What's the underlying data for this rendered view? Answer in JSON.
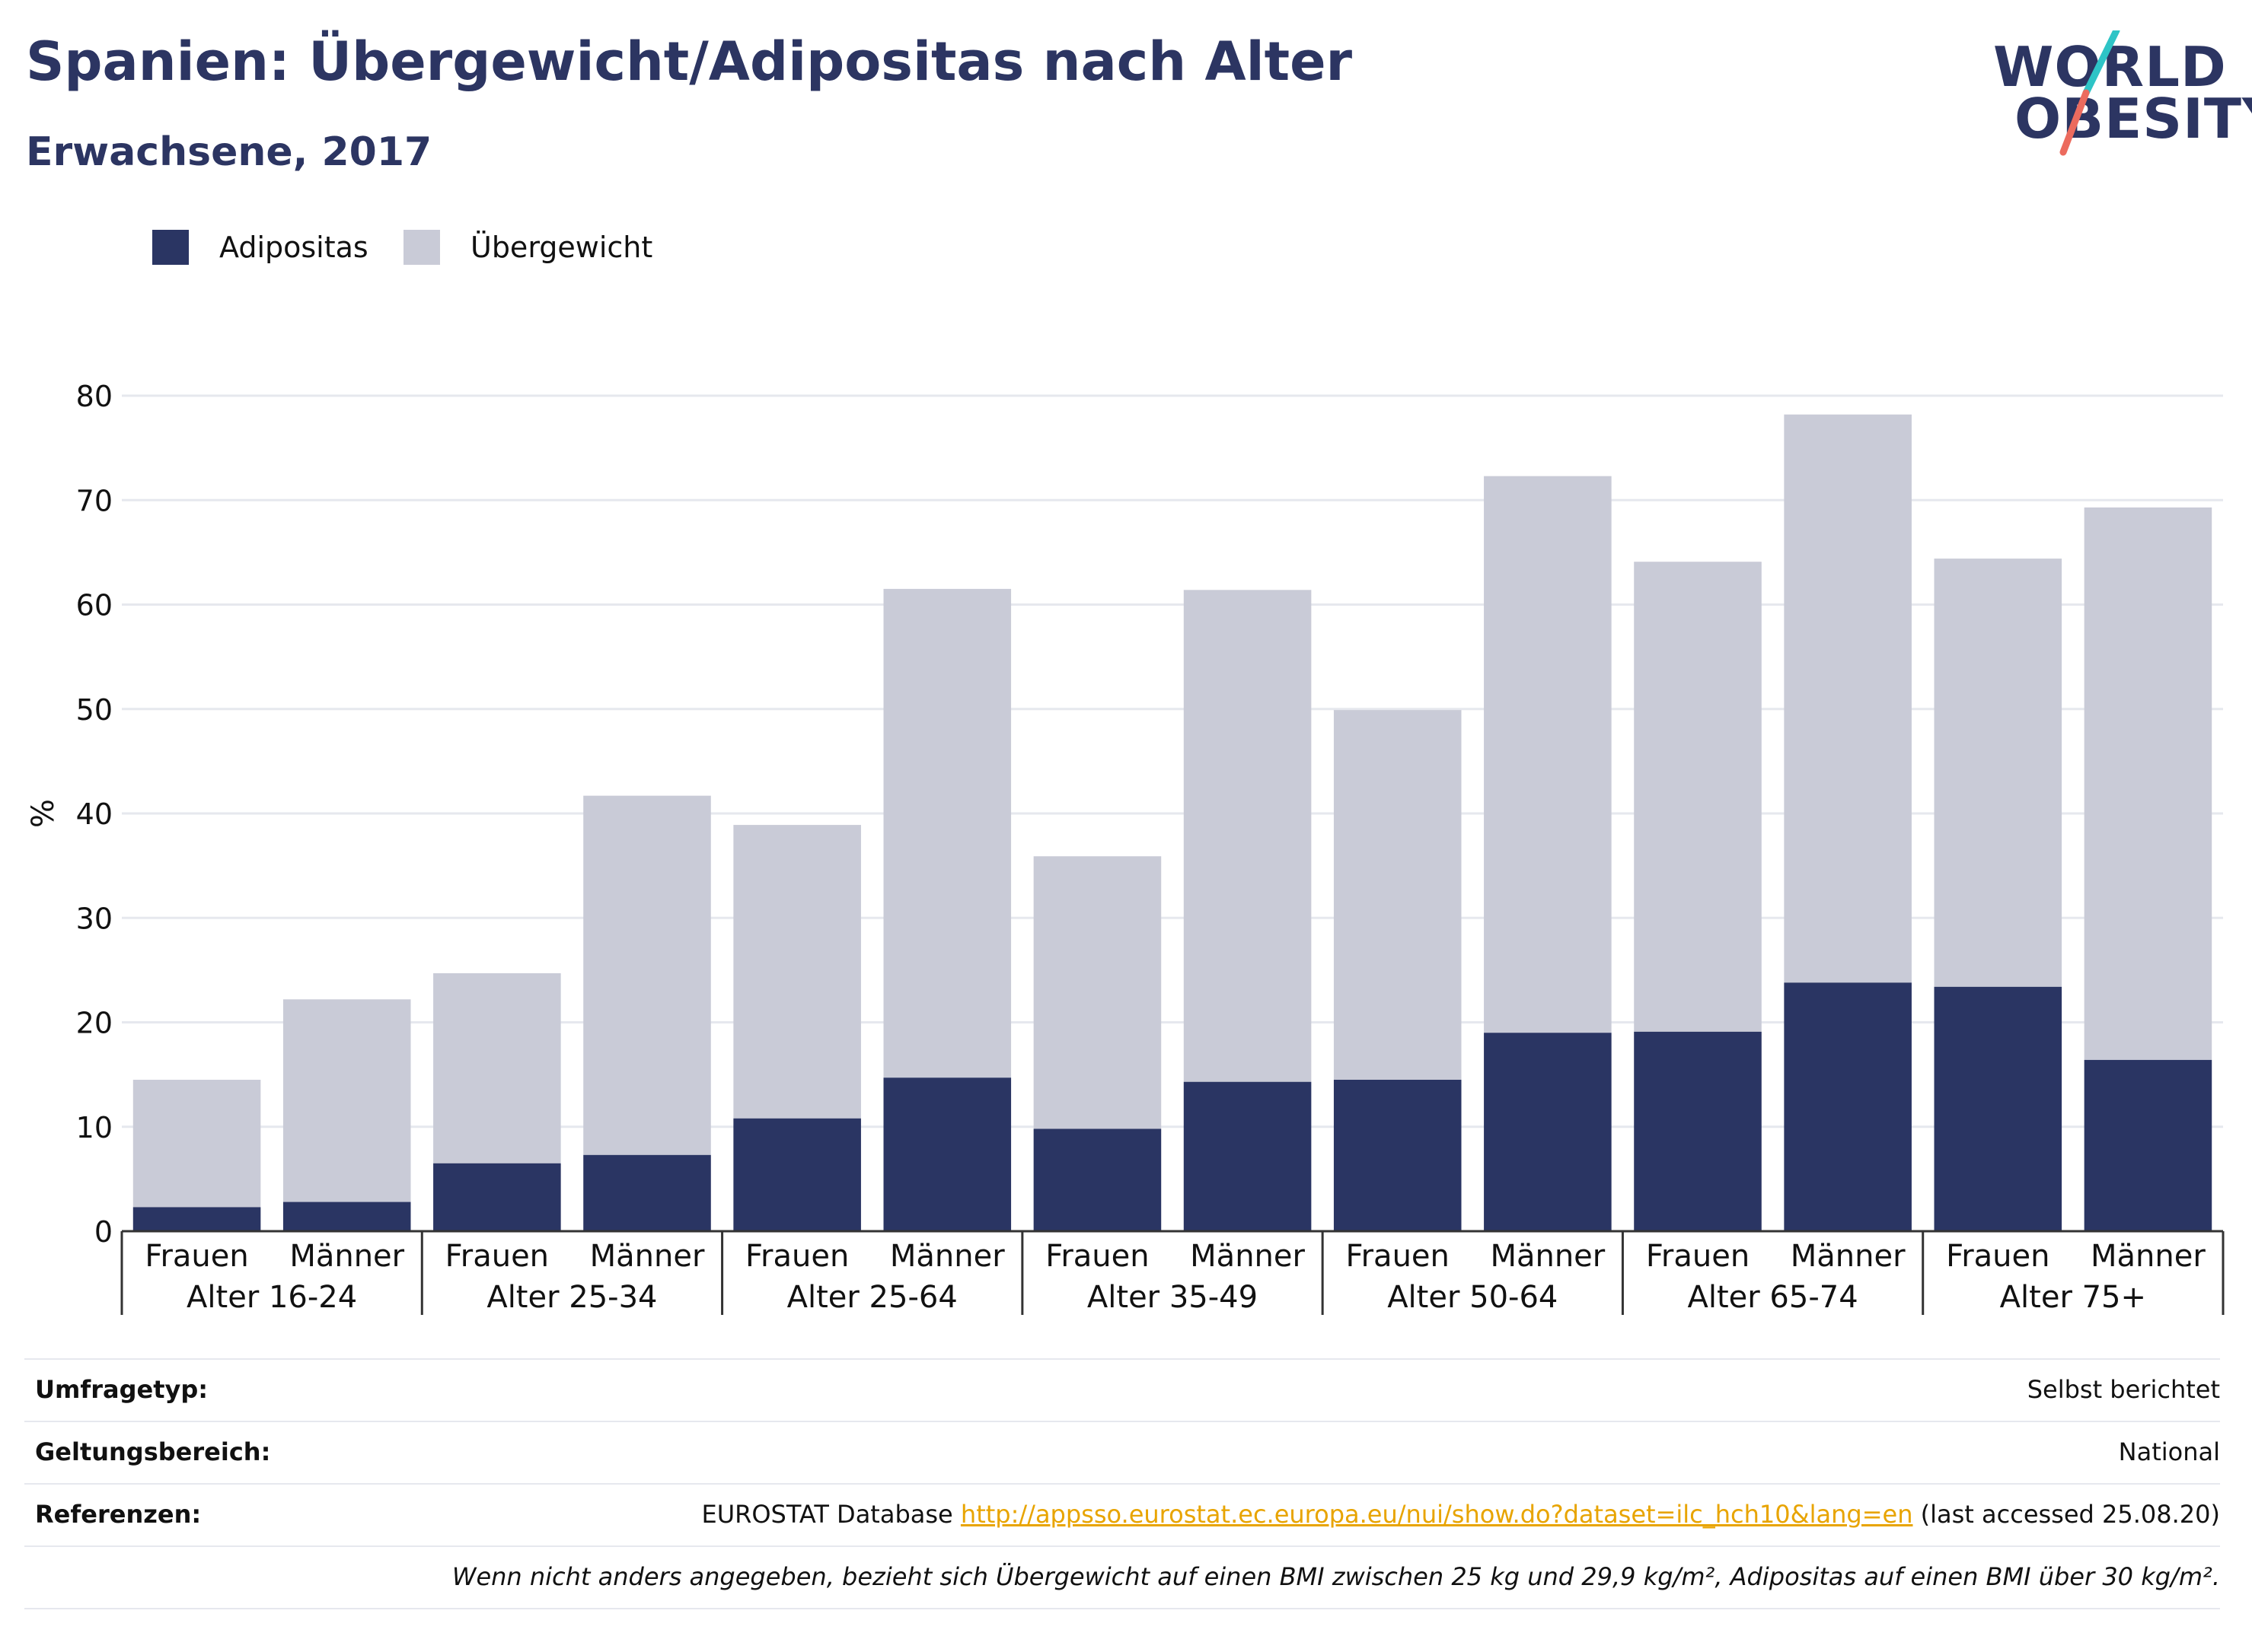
{
  "header": {
    "title": "Spanien: Übergewicht/Adipositas nach Alter",
    "subtitle": "Erwachsene, 2017"
  },
  "logo": {
    "line1": "WORLD",
    "line2": "OBESITY"
  },
  "colors": {
    "obesity": "#2a3563",
    "overweight": "#c9cbd7",
    "title": "#2c3562",
    "link": "#e8a400",
    "logo_teal": "#2ec4c6",
    "logo_coral": "#ec6b5e"
  },
  "legend": [
    {
      "label": "Adipositas",
      "color": "#2a3563"
    },
    {
      "label": "Übergewicht",
      "color": "#c9cbd7"
    }
  ],
  "chart_data": {
    "type": "bar",
    "stacked": true,
    "ylabel": "%",
    "ylim": [
      0,
      80
    ],
    "yticks": [
      0,
      10,
      20,
      30,
      40,
      50,
      60,
      70,
      80
    ],
    "grid": true,
    "legend_position": "top-left",
    "groups": [
      "Alter 16-24",
      "Alter 25-34",
      "Alter 25-64",
      "Alter 35-49",
      "Alter 50-64",
      "Alter 65-74",
      "Alter 75+"
    ],
    "categories": [
      "Frauen",
      "Männer",
      "Frauen",
      "Männer",
      "Frauen",
      "Männer",
      "Frauen",
      "Männer",
      "Frauen",
      "Männer",
      "Frauen",
      "Männer",
      "Frauen",
      "Männer"
    ],
    "series": [
      {
        "name": "Adipositas",
        "values": [
          2.3,
          2.8,
          6.5,
          7.3,
          10.8,
          14.7,
          9.8,
          14.3,
          14.5,
          19.0,
          19.1,
          23.8,
          23.4,
          16.4
        ]
      },
      {
        "name": "Übergewicht",
        "values": [
          12.2,
          19.4,
          18.2,
          34.4,
          28.1,
          46.8,
          26.1,
          47.1,
          35.4,
          53.3,
          45.0,
          54.4,
          41.0,
          52.9
        ]
      }
    ]
  },
  "meta": {
    "survey_label": "Umfragetyp:",
    "survey_value": "Selbst berichtet",
    "scope_label": "Geltungsbereich:",
    "scope_value": "National",
    "ref_label": "Referenzen:",
    "ref_prefix": "EUROSTAT Database ",
    "ref_link": "http://appsso.eurostat.ec.europa.eu/nui/show.do?dataset=ilc_hch10&lang=en",
    "ref_suffix": " (last accessed 25.08.20)",
    "note": "Wenn nicht anders angegeben, bezieht sich Übergewicht auf einen BMI zwischen 25 kg und 29,9 kg/m², Adipositas auf einen BMI über 30 kg/m²."
  }
}
